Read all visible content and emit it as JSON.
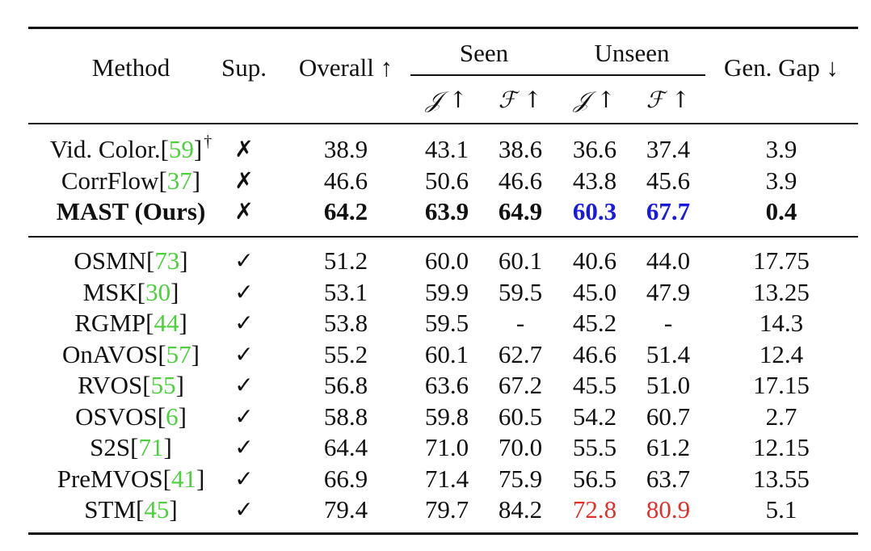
{
  "header": {
    "method": "Method",
    "sup": "Sup.",
    "overall": "Overall ↑",
    "seen": "Seen",
    "unseen": "Unseen",
    "gen_gap": "Gen. Gap ↓",
    "seen_j": "𝒥 ↑",
    "seen_f": "ℱ ↑",
    "unseen_j": "𝒥 ↑",
    "unseen_f": "ℱ ↑"
  },
  "self_supervised_rows": [
    {
      "name": "Vid. Color.",
      "ref": "59",
      "dagger": "†",
      "sup": "✗",
      "overall": "38.9",
      "seen_j": "43.1",
      "seen_f": "38.6",
      "unseen_j": "36.6",
      "unseen_f": "37.4",
      "gap": "3.9"
    },
    {
      "name": "CorrFlow",
      "ref": "37",
      "sup": "✗",
      "overall": "46.6",
      "seen_j": "50.6",
      "seen_f": "46.6",
      "unseen_j": "43.8",
      "unseen_f": "45.6",
      "gap": "3.9"
    },
    {
      "name": "MAST (Ours)",
      "ref": "",
      "sup": "✗",
      "overall": "64.2",
      "seen_j": "63.9",
      "seen_f": "64.9",
      "unseen_j": "60.3",
      "unseen_f": "67.7",
      "gap": "0.4"
    }
  ],
  "supervised_rows": [
    {
      "name": "OSMN",
      "ref": "73",
      "sup": "✓",
      "overall": "51.2",
      "seen_j": "60.0",
      "seen_f": "60.1",
      "unseen_j": "40.6",
      "unseen_f": "44.0",
      "gap": "17.75"
    },
    {
      "name": "MSK",
      "ref": "30",
      "sup": "✓",
      "overall": "53.1",
      "seen_j": "59.9",
      "seen_f": "59.5",
      "unseen_j": "45.0",
      "unseen_f": "47.9",
      "gap": "13.25"
    },
    {
      "name": "RGMP",
      "ref": "44",
      "sup": "✓",
      "overall": "53.8",
      "seen_j": "59.5",
      "seen_f": "-",
      "unseen_j": "45.2",
      "unseen_f": "-",
      "gap": "14.3"
    },
    {
      "name": "OnAVOS",
      "ref": "57",
      "sup": "✓",
      "overall": "55.2",
      "seen_j": "60.1",
      "seen_f": "62.7",
      "unseen_j": "46.6",
      "unseen_f": "51.4",
      "gap": "12.4"
    },
    {
      "name": "RVOS",
      "ref": "55",
      "sup": "✓",
      "overall": "56.8",
      "seen_j": "63.6",
      "seen_f": "67.2",
      "unseen_j": "45.5",
      "unseen_f": "51.0",
      "gap": "17.15"
    },
    {
      "name": "OSVOS",
      "ref": "6",
      "sup": "✓",
      "overall": "58.8",
      "seen_j": "59.8",
      "seen_f": "60.5",
      "unseen_j": "54.2",
      "unseen_f": "60.7",
      "gap": "2.7"
    },
    {
      "name": "S2S",
      "ref": "71",
      "sup": "✓",
      "overall": "64.4",
      "seen_j": "71.0",
      "seen_f": "70.0",
      "unseen_j": "55.5",
      "unseen_f": "61.2",
      "gap": "12.15"
    },
    {
      "name": "PreMVOS",
      "ref": "41",
      "sup": "✓",
      "overall": "66.9",
      "seen_j": "71.4",
      "seen_f": "75.9",
      "unseen_j": "56.5",
      "unseen_f": "63.7",
      "gap": "13.55"
    },
    {
      "name": "STM",
      "ref": "45",
      "sup": "✓",
      "overall": "79.4",
      "seen_j": "79.7",
      "seen_f": "84.2",
      "unseen_j": "72.8",
      "unseen_f": "80.9",
      "gap": "5.1"
    }
  ],
  "colors": {
    "reference_link": "#4cd13d",
    "best_self_supervised": "#1a1adf",
    "best_supervised": "#e0302a"
  }
}
